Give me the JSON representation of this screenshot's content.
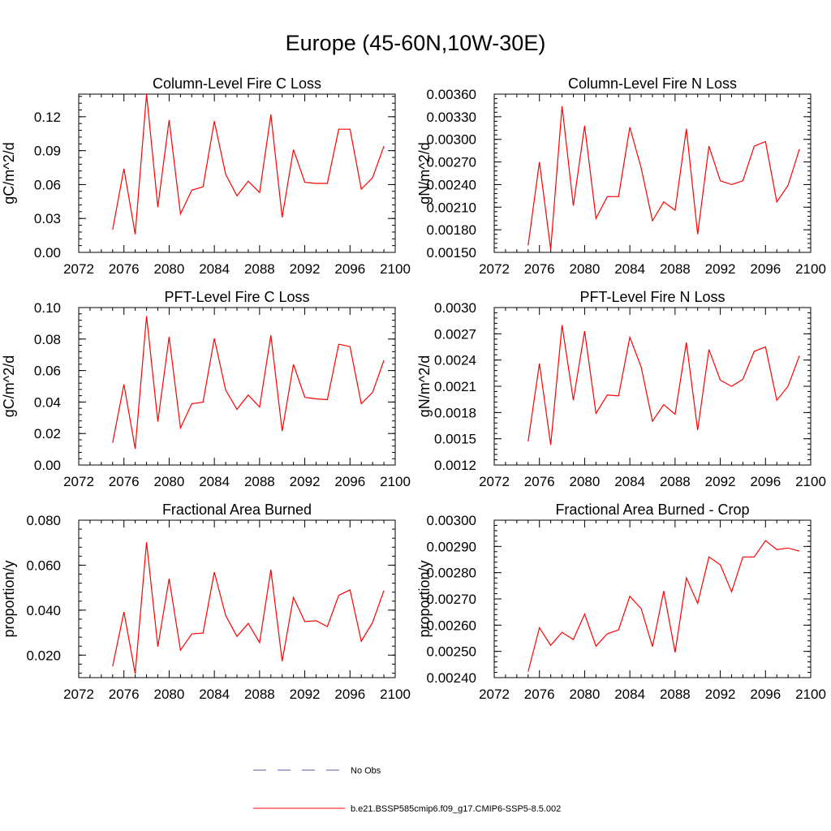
{
  "page_title": "Europe (45-60N,10W-30E)",
  "legend": [
    {
      "label": "No Obs",
      "color": "#5a5aa0",
      "dashed": true
    },
    {
      "label": "b.e21.BSSP585cmip6.f09_g17.CMIP6-SSP5-8.5.002",
      "color": "#ff0000",
      "dashed": false
    }
  ],
  "chart_data": [
    {
      "type": "line",
      "title": "Column-Level Fire C Loss",
      "ylabel": "gC/m^2/d",
      "xlim": [
        2072,
        2100
      ],
      "ylim": [
        0.0,
        0.14
      ],
      "xticks": [
        2072,
        2076,
        2080,
        2084,
        2088,
        2092,
        2096,
        2100
      ],
      "yticks": [
        0.0,
        0.03,
        0.06,
        0.09,
        0.12
      ],
      "ytick_labels": [
        "0.00",
        "0.03",
        "0.06",
        "0.09",
        "0.12"
      ],
      "series": [
        {
          "name": "b.e21.BSSP585cmip6.f09_g17.CMIP6-SSP5-8.5.002",
          "color": "#ff0000",
          "x": [
            2075,
            2076,
            2077,
            2078,
            2079,
            2080,
            2081,
            2082,
            2083,
            2084,
            2085,
            2086,
            2087,
            2088,
            2089,
            2090,
            2091,
            2092,
            2093,
            2094,
            2095,
            2096,
            2097,
            2098,
            2099
          ],
          "y": [
            0.02,
            0.074,
            0.016,
            0.14,
            0.04,
            0.117,
            0.034,
            0.055,
            0.058,
            0.116,
            0.069,
            0.05,
            0.063,
            0.053,
            0.122,
            0.031,
            0.091,
            0.062,
            0.061,
            0.061,
            0.109,
            0.109,
            0.056,
            0.066,
            0.094
          ]
        }
      ]
    },
    {
      "type": "line",
      "title": "Column-Level Fire N Loss",
      "ylabel": "gN/m^2/d",
      "xlim": [
        2072,
        2100
      ],
      "ylim": [
        0.0015,
        0.0036
      ],
      "xticks": [
        2072,
        2076,
        2080,
        2084,
        2088,
        2092,
        2096,
        2100
      ],
      "yticks": [
        0.0015,
        0.0018,
        0.0021,
        0.0024,
        0.0027,
        0.003,
        0.0033,
        0.0036
      ],
      "ytick_labels": [
        "0.00150",
        "0.00180",
        "0.00210",
        "0.00240",
        "0.00270",
        "0.00300",
        "0.00330",
        "0.00360"
      ],
      "series": [
        {
          "name": "b.e21.BSSP585cmip6.f09_g17.CMIP6-SSP5-8.5.002",
          "color": "#ff0000",
          "x": [
            2075,
            2076,
            2077,
            2078,
            2079,
            2080,
            2081,
            2082,
            2083,
            2084,
            2085,
            2086,
            2087,
            2088,
            2089,
            2090,
            2091,
            2092,
            2093,
            2094,
            2095,
            2096,
            2097,
            2098,
            2099
          ],
          "y": [
            0.00159,
            0.0027,
            0.00154,
            0.00344,
            0.00212,
            0.00318,
            0.00195,
            0.00224,
            0.00224,
            0.00316,
            0.00262,
            0.00192,
            0.00217,
            0.00206,
            0.00314,
            0.00174,
            0.00291,
            0.00245,
            0.0024,
            0.00245,
            0.00291,
            0.00297,
            0.00217,
            0.00239,
            0.00287
          ]
        }
      ]
    },
    {
      "type": "line",
      "title": "PFT-Level Fire C Loss",
      "ylabel": "gC/m^2/d",
      "xlim": [
        2072,
        2100
      ],
      "ylim": [
        0.0,
        0.1
      ],
      "xticks": [
        2072,
        2076,
        2080,
        2084,
        2088,
        2092,
        2096,
        2100
      ],
      "yticks": [
        0.0,
        0.02,
        0.04,
        0.06,
        0.08,
        0.1
      ],
      "ytick_labels": [
        "0.00",
        "0.02",
        "0.04",
        "0.06",
        "0.08",
        "0.10"
      ],
      "series": [
        {
          "name": "b.e21.BSSP585cmip6.f09_g17.CMIP6-SSP5-8.5.002",
          "color": "#ff0000",
          "x": [
            2075,
            2076,
            2077,
            2078,
            2079,
            2080,
            2081,
            2082,
            2083,
            2084,
            2085,
            2086,
            2087,
            2088,
            2089,
            2090,
            2091,
            2092,
            2093,
            2094,
            2095,
            2096,
            2097,
            2098,
            2099
          ],
          "y": [
            0.0141,
            0.0512,
            0.0103,
            0.0946,
            0.0276,
            0.0814,
            0.0235,
            0.0389,
            0.0399,
            0.0804,
            0.0476,
            0.0353,
            0.0445,
            0.0368,
            0.0824,
            0.0215,
            0.0639,
            0.043,
            0.042,
            0.0415,
            0.0767,
            0.0752,
            0.0389,
            0.0461,
            0.0665
          ]
        }
      ]
    },
    {
      "type": "line",
      "title": "PFT-Level Fire N Loss",
      "ylabel": "gN/m^2/d",
      "xlim": [
        2072,
        2100
      ],
      "ylim": [
        0.0012,
        0.003
      ],
      "xticks": [
        2072,
        2076,
        2080,
        2084,
        2088,
        2092,
        2096,
        2100
      ],
      "yticks": [
        0.0012,
        0.0015,
        0.0018,
        0.0021,
        0.0024,
        0.0027,
        0.003
      ],
      "ytick_labels": [
        "0.0012",
        "0.0015",
        "0.0018",
        "0.0021",
        "0.0024",
        "0.0027",
        "0.0030"
      ],
      "series": [
        {
          "name": "b.e21.BSSP585cmip6.f09_g17.CMIP6-SSP5-8.5.002",
          "color": "#ff0000",
          "x": [
            2075,
            2076,
            2077,
            2078,
            2079,
            2080,
            2081,
            2082,
            2083,
            2084,
            2085,
            2086,
            2087,
            2088,
            2089,
            2090,
            2091,
            2092,
            2093,
            2094,
            2095,
            2096,
            2097,
            2098,
            2099
          ],
          "y": [
            0.00147,
            0.00236,
            0.00143,
            0.0028,
            0.00194,
            0.00273,
            0.00179,
            0.002,
            0.00199,
            0.00266,
            0.00232,
            0.0017,
            0.00189,
            0.00178,
            0.0026,
            0.0016,
            0.00252,
            0.00217,
            0.0021,
            0.00218,
            0.0025,
            0.00255,
            0.00194,
            0.0021,
            0.00245
          ]
        }
      ]
    },
    {
      "type": "line",
      "title": "Fractional Area Burned",
      "ylabel": "proportion/y",
      "xlim": [
        2072,
        2100
      ],
      "ylim": [
        0.01,
        0.08
      ],
      "xticks": [
        2072,
        2076,
        2080,
        2084,
        2088,
        2092,
        2096,
        2100
      ],
      "yticks": [
        0.02,
        0.04,
        0.06,
        0.08
      ],
      "ytick_labels": [
        "0.020",
        "0.040",
        "0.060",
        "0.080"
      ],
      "series": [
        {
          "name": "b.e21.BSSP585cmip6.f09_g17.CMIP6-SSP5-8.5.002",
          "color": "#ff0000",
          "x": [
            2075,
            2076,
            2077,
            2078,
            2079,
            2080,
            2081,
            2082,
            2083,
            2084,
            2085,
            2086,
            2087,
            2088,
            2089,
            2090,
            2091,
            2092,
            2093,
            2094,
            2095,
            2096,
            2097,
            2098,
            2099
          ],
          "y": [
            0.015,
            0.0392,
            0.0118,
            0.0702,
            0.0238,
            0.054,
            0.0222,
            0.0294,
            0.0298,
            0.0569,
            0.0376,
            0.0283,
            0.0341,
            0.0256,
            0.058,
            0.0173,
            0.0457,
            0.0349,
            0.0353,
            0.0327,
            0.0466,
            0.049,
            0.0262,
            0.0345,
            0.0487
          ]
        }
      ]
    },
    {
      "type": "line",
      "title": "Fractional Area Burned - Crop",
      "ylabel": "proportion/y",
      "xlim": [
        2072,
        2100
      ],
      "ylim": [
        0.0024,
        0.003
      ],
      "xticks": [
        2072,
        2076,
        2080,
        2084,
        2088,
        2092,
        2096,
        2100
      ],
      "yticks": [
        0.0024,
        0.0025,
        0.0026,
        0.0027,
        0.0028,
        0.0029,
        0.003
      ],
      "ytick_labels": [
        "0.00240",
        "0.00250",
        "0.00260",
        "0.00270",
        "0.00280",
        "0.00290",
        "0.00300"
      ],
      "series": [
        {
          "name": "b.e21.BSSP585cmip6.f09_g17.CMIP6-SSP5-8.5.002",
          "color": "#ff0000",
          "x": [
            2075,
            2076,
            2077,
            2078,
            2079,
            2080,
            2081,
            2082,
            2083,
            2084,
            2085,
            2086,
            2087,
            2088,
            2089,
            2090,
            2091,
            2092,
            2093,
            2094,
            2095,
            2096,
            2097,
            2098,
            2099
          ],
          "y": [
            0.002423,
            0.00259,
            0.002523,
            0.002573,
            0.002545,
            0.002642,
            0.00252,
            0.002567,
            0.002582,
            0.00271,
            0.002663,
            0.002518,
            0.00273,
            0.002496,
            0.00278,
            0.002683,
            0.00286,
            0.00283,
            0.002727,
            0.00286,
            0.00286,
            0.002922,
            0.002888,
            0.002894,
            0.002882
          ]
        }
      ]
    }
  ]
}
